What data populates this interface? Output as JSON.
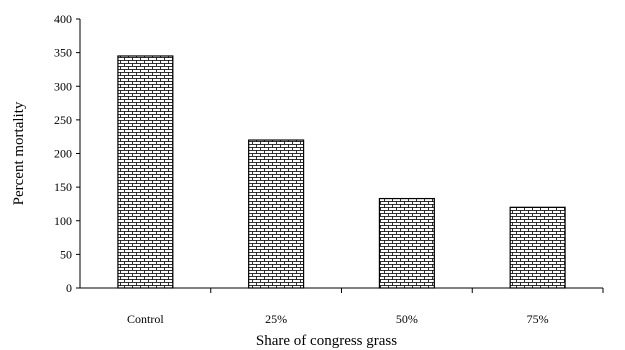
{
  "chart_data": {
    "type": "bar",
    "categories": [
      "Control",
      "25%",
      "50%",
      "75%"
    ],
    "values": [
      345,
      220,
      133,
      120
    ],
    "title": "",
    "xlabel": "Share of congress grass",
    "ylabel": "Percent mortality",
    "ylim": [
      0,
      400
    ],
    "yticks": [
      0,
      50,
      100,
      150,
      200,
      250,
      300,
      350,
      400
    ],
    "grid": false,
    "legend": "none",
    "bar_fill": "brick-pattern",
    "colors": {
      "bar_stroke": "#000000",
      "pattern": "#000000",
      "background": "#ffffff"
    }
  }
}
